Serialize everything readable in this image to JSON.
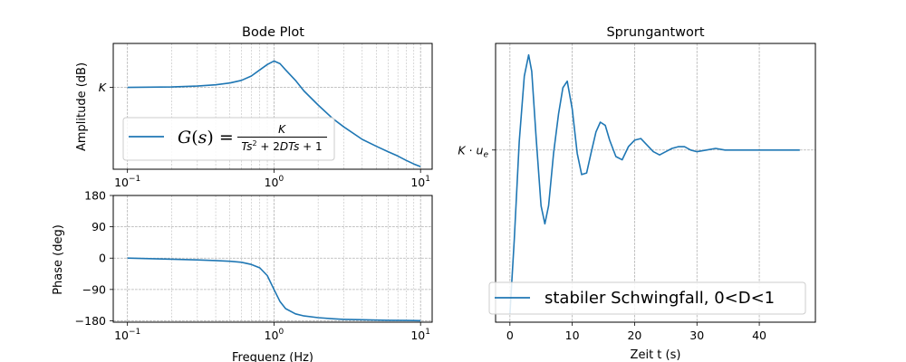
{
  "colors": {
    "line": "#1f77b4",
    "frame": "#000000",
    "grid": "#b0b0b0"
  },
  "chart_data": [
    {
      "type": "line",
      "panel": "bode-amplitude",
      "title": "Bode Plot",
      "xlabel": "",
      "ylabel": "Amplitude (dB)",
      "xscale": "log",
      "xlim": [
        0.08,
        12
      ],
      "ylim": [
        -0.93,
        0.5
      ],
      "x_ticks": [
        0.1,
        1,
        10
      ],
      "x_tick_labels": [
        "10⁻¹",
        "10⁰",
        "10¹"
      ],
      "y_ticks": [
        0
      ],
      "y_tick_labels": [
        "K"
      ],
      "grid": true,
      "legend_placement": "lower-left",
      "series": [
        {
          "name": "G(s) = K / (Ts² + 2DTs + 1)",
          "x": [
            0.1,
            0.2,
            0.3,
            0.4,
            0.5,
            0.6,
            0.7,
            0.8,
            0.9,
            1.0,
            1.1,
            1.2,
            1.4,
            1.6,
            2.0,
            2.5,
            3.0,
            4.0,
            5.0,
            6.0,
            7.0,
            8.0,
            9.0,
            10.0
          ],
          "y": [
            0.0,
            0.005,
            0.015,
            0.03,
            0.05,
            0.08,
            0.13,
            0.2,
            0.26,
            0.3,
            0.27,
            0.2,
            0.08,
            -0.04,
            -0.2,
            -0.35,
            -0.45,
            -0.59,
            -0.67,
            -0.73,
            -0.78,
            -0.83,
            -0.87,
            -0.9
          ]
        }
      ]
    },
    {
      "type": "line",
      "panel": "bode-phase",
      "title": "",
      "xlabel": "Frequenz (Hz)",
      "ylabel": "Phase (deg)",
      "xscale": "log",
      "xlim": [
        0.08,
        12
      ],
      "ylim": [
        -184,
        180
      ],
      "x_ticks": [
        0.1,
        1,
        10
      ],
      "x_tick_labels": [
        "10⁻¹",
        "10⁰",
        "10¹"
      ],
      "y_ticks": [
        180,
        90,
        0,
        -90,
        -180
      ],
      "y_tick_labels": [
        "180",
        "90",
        "0",
        "−90",
        "−180"
      ],
      "grid": true,
      "series": [
        {
          "x": [
            0.1,
            0.2,
            0.3,
            0.4,
            0.5,
            0.6,
            0.7,
            0.8,
            0.9,
            1.0,
            1.1,
            1.2,
            1.4,
            1.6,
            2.0,
            2.5,
            3.0,
            4.0,
            5.0,
            6.0,
            8.0,
            10.0
          ],
          "y": [
            0,
            -3,
            -5,
            -7,
            -9,
            -12,
            -18,
            -28,
            -50,
            -90,
            -125,
            -145,
            -160,
            -166,
            -171,
            -174,
            -176,
            -177,
            -178,
            -178.5,
            -179,
            -179.5
          ]
        }
      ]
    },
    {
      "type": "line",
      "panel": "step-response",
      "title": "Sprungantwort",
      "xlabel": "Zeit t (s)",
      "ylabel": "",
      "xlim": [
        -2.3,
        49
      ],
      "ylim": [
        -0.05,
        1.65
      ],
      "x_ticks": [
        0,
        10,
        20,
        30,
        40
      ],
      "x_tick_labels": [
        "0",
        "10",
        "20",
        "30",
        "40"
      ],
      "y_ticks": [
        1
      ],
      "y_tick_labels": [
        "K·uₑ"
      ],
      "grid": true,
      "legend_placement": "lower-left",
      "series": [
        {
          "name": "stabiler Schwingfall, 0<D<1",
          "x": [
            0,
            0.7,
            1.5,
            2.3,
            3.0,
            3.5,
            4.2,
            5.0,
            5.6,
            6.2,
            7.0,
            7.8,
            8.5,
            9.2,
            10.0,
            10.8,
            11.5,
            12.3,
            13.0,
            13.8,
            14.5,
            15.3,
            16.0,
            17.0,
            18.0,
            19.0,
            20.0,
            21.0,
            22.0,
            23.0,
            24.0,
            25.0,
            26.0,
            27.0,
            28.0,
            29.0,
            30.0,
            31.5,
            33.0,
            34.5,
            36.0,
            37.5,
            39.0,
            40.5,
            42.0,
            43.5,
            45.0,
            46.5
          ],
          "y": [
            0.0,
            0.45,
            1.05,
            1.45,
            1.58,
            1.48,
            1.08,
            0.66,
            0.55,
            0.66,
            0.98,
            1.22,
            1.38,
            1.42,
            1.25,
            0.98,
            0.85,
            0.86,
            0.98,
            1.11,
            1.17,
            1.15,
            1.06,
            0.96,
            0.94,
            1.02,
            1.06,
            1.07,
            1.03,
            0.99,
            0.97,
            0.99,
            1.01,
            1.02,
            1.02,
            1.0,
            0.99,
            1.0,
            1.01,
            1.0,
            1.0,
            1.0,
            1.0,
            1.0,
            1.0,
            1.0,
            1.0,
            1.0
          ]
        }
      ]
    }
  ]
}
